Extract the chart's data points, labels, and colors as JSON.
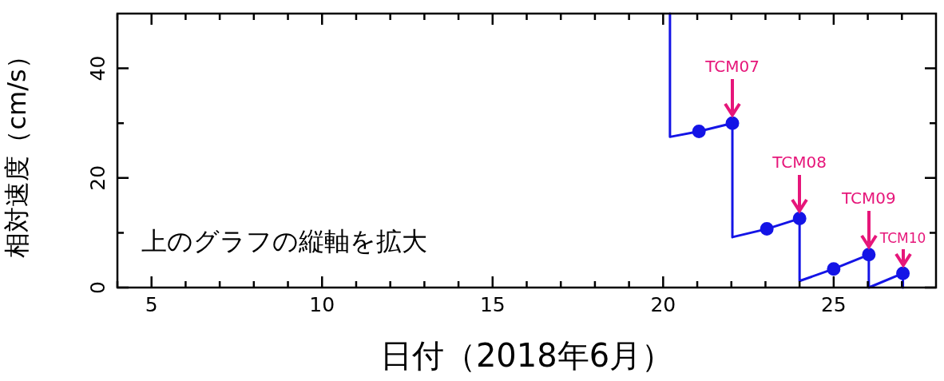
{
  "chart_data": {
    "type": "line",
    "xlabel": "日付（2018年6月）",
    "ylabel": "相対速度（cm/s）",
    "xlim": [
      4,
      28
    ],
    "ylim": [
      0,
      50
    ],
    "xticks": [
      {
        "value": 4,
        "label": null
      },
      5,
      {
        "value": 6,
        "label": null
      },
      {
        "value": 7,
        "label": null
      },
      {
        "value": 8,
        "label": null
      },
      {
        "value": 9,
        "label": null
      },
      10,
      {
        "value": 11,
        "label": null
      },
      {
        "value": 12,
        "label": null
      },
      {
        "value": 13,
        "label": null
      },
      {
        "value": 14,
        "label": null
      },
      15,
      {
        "value": 16,
        "label": null
      },
      {
        "value": 17,
        "label": null
      },
      {
        "value": 18,
        "label": null
      },
      {
        "value": 19,
        "label": null
      },
      20,
      {
        "value": 21,
        "label": null
      },
      {
        "value": 22,
        "label": null
      },
      {
        "value": 23,
        "label": null
      },
      {
        "value": 24,
        "label": null
      },
      25,
      {
        "value": 26,
        "label": null
      },
      {
        "value": 27,
        "label": null
      }
    ],
    "yticks": [
      0,
      {
        "value": 10,
        "label": null
      },
      20,
      {
        "value": 30,
        "label": null
      },
      40
    ],
    "grid": false,
    "legend": false,
    "series": [
      {
        "marker": "none",
        "color": "#1414e6",
        "x": [
          20.2,
          20.2,
          21.05,
          22.03,
          22.03,
          23.04,
          24,
          24,
          25,
          26.03,
          26.03,
          27.03,
          27.03
        ],
        "values": [
          50,
          27.5,
          28.5,
          30,
          9.2,
          10.7,
          12.6,
          1.2,
          3.4,
          6,
          0,
          2.6,
          0
        ]
      },
      {
        "type": "scatter",
        "marker": "circle",
        "color": "#1414e6",
        "x": [
          21.05,
          22.03,
          23.04,
          24,
          25,
          26.03,
          27.03
        ],
        "values": [
          28.5,
          30,
          10.7,
          12.6,
          3.4,
          6,
          2.6
        ]
      }
    ],
    "annotations": [
      {
        "text": "TCM07",
        "x": 22.03,
        "y": 30
      },
      {
        "text": "TCM08",
        "x": 24,
        "y": 12.6
      },
      {
        "text": "TCM09",
        "x": 26.03,
        "y": 6
      },
      {
        "text": "TCM10",
        "x": 27.03,
        "y": 2.6
      },
      "上のグラフの縦軸を拡大"
    ]
  }
}
